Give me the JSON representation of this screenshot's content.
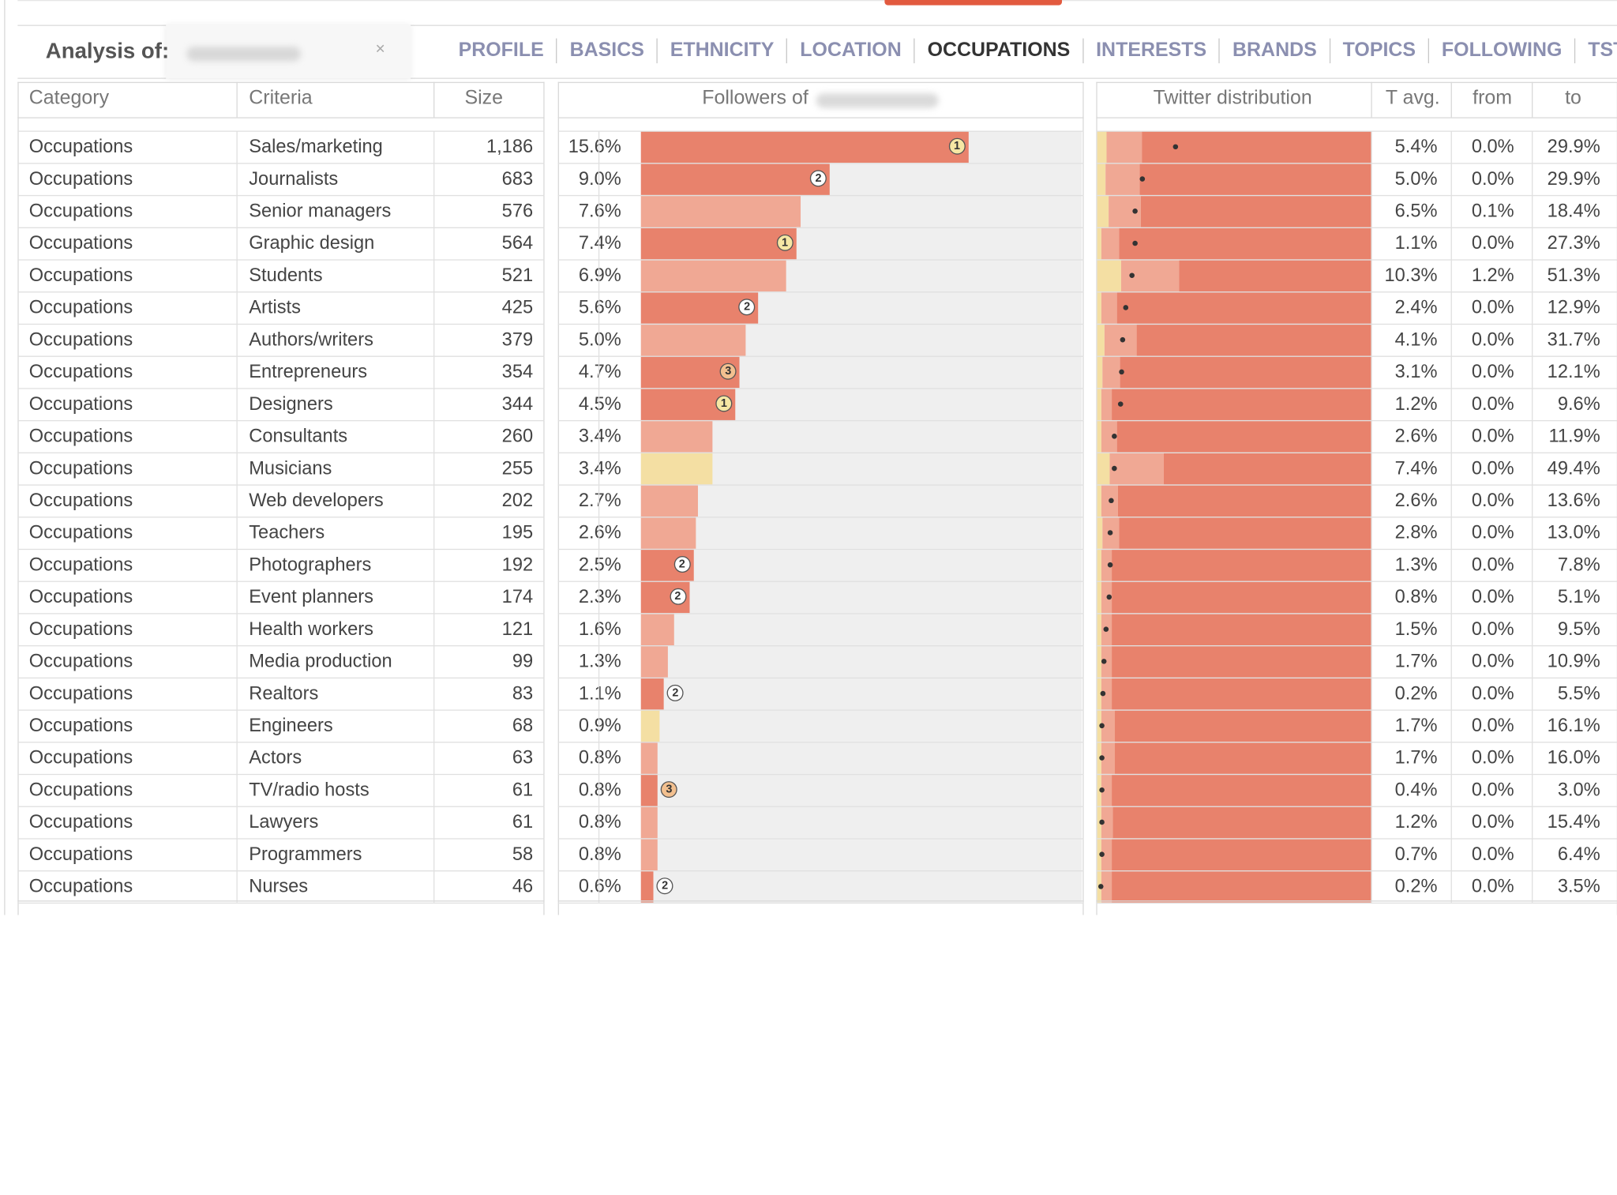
{
  "header": {
    "analysis_label": "Analysis of:",
    "clear_symbol": "×",
    "tabs": [
      "PROFILE",
      "BASICS",
      "ETHNICITY",
      "LOCATION",
      "OCCUPATIONS",
      "INTERESTS",
      "BRANDS",
      "TOPICS",
      "FOLLOWING",
      "TSTATS"
    ],
    "active_tab": "OCCUPATIONS"
  },
  "columns": {
    "category": "Category",
    "criteria": "Criteria",
    "size": "Size",
    "followers": "Followers of",
    "twitter_distribution": "Twitter distribution",
    "t_avg": "T avg.",
    "from": "from",
    "to": "to"
  },
  "colors": {
    "bar_dark": "#e8826c",
    "bar_light": "#f0a894",
    "bar_yellow": "#f4dfa3",
    "track": "#efefef",
    "badge_yellow": "#f6e7a4",
    "badge_orange": "#f3c08f",
    "badge_white": "#ffffff"
  },
  "rows": [
    {
      "category": "Occupations",
      "criteria": "Sales/marketing",
      "size": "1,186",
      "pct": "15.6%",
      "value": 15.6,
      "color": "dark",
      "badge": "1",
      "tavg": "5.4%",
      "from": "0.0%",
      "to": "29.9%",
      "dist": [
        0.0,
        5.4,
        29.9
      ]
    },
    {
      "category": "Occupations",
      "criteria": "Journalists",
      "size": "683",
      "pct": "9.0%",
      "value": 9.0,
      "color": "dark",
      "badge": "2",
      "tavg": "5.0%",
      "from": "0.0%",
      "to": "29.9%",
      "dist": [
        0.0,
        5.0,
        29.9
      ]
    },
    {
      "category": "Occupations",
      "criteria": "Senior managers",
      "size": "576",
      "pct": "7.6%",
      "value": 7.6,
      "color": "light",
      "badge": "",
      "tavg": "6.5%",
      "from": "0.1%",
      "to": "18.4%",
      "dist": [
        0.1,
        6.5,
        18.4
      ]
    },
    {
      "category": "Occupations",
      "criteria": "Graphic design",
      "size": "564",
      "pct": "7.4%",
      "value": 7.4,
      "color": "dark",
      "badge": "1",
      "tavg": "1.1%",
      "from": "0.0%",
      "to": "27.3%",
      "dist": [
        0.0,
        1.1,
        27.3
      ]
    },
    {
      "category": "Occupations",
      "criteria": "Students",
      "size": "521",
      "pct": "6.9%",
      "value": 6.9,
      "color": "light",
      "badge": "",
      "tavg": "10.3%",
      "from": "1.2%",
      "to": "51.3%",
      "dist": [
        1.2,
        10.3,
        51.3
      ]
    },
    {
      "category": "Occupations",
      "criteria": "Artists",
      "size": "425",
      "pct": "5.6%",
      "value": 5.6,
      "color": "dark",
      "badge": "2",
      "tavg": "2.4%",
      "from": "0.0%",
      "to": "12.9%",
      "dist": [
        0.0,
        2.4,
        12.9
      ]
    },
    {
      "category": "Occupations",
      "criteria": "Authors/writers",
      "size": "379",
      "pct": "5.0%",
      "value": 5.0,
      "color": "light",
      "badge": "",
      "tavg": "4.1%",
      "from": "0.0%",
      "to": "31.7%",
      "dist": [
        0.0,
        4.1,
        31.7
      ]
    },
    {
      "category": "Occupations",
      "criteria": "Entrepreneurs",
      "size": "354",
      "pct": "4.7%",
      "value": 4.7,
      "color": "dark",
      "badge": "3",
      "tavg": "3.1%",
      "from": "0.0%",
      "to": "12.1%",
      "dist": [
        0.0,
        3.1,
        12.1
      ]
    },
    {
      "category": "Occupations",
      "criteria": "Designers",
      "size": "344",
      "pct": "4.5%",
      "value": 4.5,
      "color": "dark",
      "badge": "1",
      "tavg": "1.2%",
      "from": "0.0%",
      "to": "9.6%",
      "dist": [
        0.0,
        1.2,
        9.6
      ]
    },
    {
      "category": "Occupations",
      "criteria": "Consultants",
      "size": "260",
      "pct": "3.4%",
      "value": 3.4,
      "color": "light",
      "badge": "",
      "tavg": "2.6%",
      "from": "0.0%",
      "to": "11.9%",
      "dist": [
        0.0,
        2.6,
        11.9
      ]
    },
    {
      "category": "Occupations",
      "criteria": "Musicians",
      "size": "255",
      "pct": "3.4%",
      "value": 3.4,
      "color": "yellow",
      "badge": "",
      "tavg": "7.4%",
      "from": "0.0%",
      "to": "49.4%",
      "dist": [
        0.0,
        7.4,
        49.4
      ]
    },
    {
      "category": "Occupations",
      "criteria": "Web developers",
      "size": "202",
      "pct": "2.7%",
      "value": 2.7,
      "color": "light",
      "badge": "",
      "tavg": "2.6%",
      "from": "0.0%",
      "to": "13.6%",
      "dist": [
        0.0,
        2.6,
        13.6
      ]
    },
    {
      "category": "Occupations",
      "criteria": "Teachers",
      "size": "195",
      "pct": "2.6%",
      "value": 2.6,
      "color": "light",
      "badge": "",
      "tavg": "2.8%",
      "from": "0.0%",
      "to": "13.0%",
      "dist": [
        0.0,
        2.8,
        13.0
      ]
    },
    {
      "category": "Occupations",
      "criteria": "Photographers",
      "size": "192",
      "pct": "2.5%",
      "value": 2.5,
      "color": "dark",
      "badge": "2",
      "tavg": "1.3%",
      "from": "0.0%",
      "to": "7.8%",
      "dist": [
        0.0,
        1.3,
        7.8
      ]
    },
    {
      "category": "Occupations",
      "criteria": "Event planners",
      "size": "174",
      "pct": "2.3%",
      "value": 2.3,
      "color": "dark",
      "badge": "2",
      "tavg": "0.8%",
      "from": "0.0%",
      "to": "5.1%",
      "dist": [
        0.0,
        0.8,
        5.1
      ]
    },
    {
      "category": "Occupations",
      "criteria": "Health workers",
      "size": "121",
      "pct": "1.6%",
      "value": 1.6,
      "color": "light",
      "badge": "",
      "tavg": "1.5%",
      "from": "0.0%",
      "to": "9.5%",
      "dist": [
        0.0,
        1.5,
        9.5
      ]
    },
    {
      "category": "Occupations",
      "criteria": "Media production",
      "size": "99",
      "pct": "1.3%",
      "value": 1.3,
      "color": "light",
      "badge": "",
      "tavg": "1.7%",
      "from": "0.0%",
      "to": "10.9%",
      "dist": [
        0.0,
        1.7,
        10.9
      ]
    },
    {
      "category": "Occupations",
      "criteria": "Realtors",
      "size": "83",
      "pct": "1.1%",
      "value": 1.1,
      "color": "dark",
      "badge": "2",
      "tavg": "0.2%",
      "from": "0.0%",
      "to": "5.5%",
      "dist": [
        0.0,
        0.2,
        5.5
      ]
    },
    {
      "category": "Occupations",
      "criteria": "Engineers",
      "size": "68",
      "pct": "0.9%",
      "value": 0.9,
      "color": "yellow",
      "badge": "",
      "tavg": "1.7%",
      "from": "0.0%",
      "to": "16.1%",
      "dist": [
        0.0,
        1.7,
        16.1
      ]
    },
    {
      "category": "Occupations",
      "criteria": "Actors",
      "size": "63",
      "pct": "0.8%",
      "value": 0.8,
      "color": "light",
      "badge": "",
      "tavg": "1.7%",
      "from": "0.0%",
      "to": "16.0%",
      "dist": [
        0.0,
        1.7,
        16.0
      ]
    },
    {
      "category": "Occupations",
      "criteria": "TV/radio hosts",
      "size": "61",
      "pct": "0.8%",
      "value": 0.8,
      "color": "dark",
      "badge": "3",
      "tavg": "0.4%",
      "from": "0.0%",
      "to": "3.0%",
      "dist": [
        0.0,
        0.4,
        3.0
      ]
    },
    {
      "category": "Occupations",
      "criteria": "Lawyers",
      "size": "61",
      "pct": "0.8%",
      "value": 0.8,
      "color": "light",
      "badge": "",
      "tavg": "1.2%",
      "from": "0.0%",
      "to": "15.4%",
      "dist": [
        0.0,
        1.2,
        15.4
      ]
    },
    {
      "category": "Occupations",
      "criteria": "Programmers",
      "size": "58",
      "pct": "0.8%",
      "value": 0.8,
      "color": "light",
      "badge": "",
      "tavg": "0.7%",
      "from": "0.0%",
      "to": "6.4%",
      "dist": [
        0.0,
        0.7,
        6.4
      ]
    },
    {
      "category": "Occupations",
      "criteria": "Nurses",
      "size": "46",
      "pct": "0.6%",
      "value": 0.6,
      "color": "dark",
      "badge": "2",
      "tavg": "0.2%",
      "from": "0.0%",
      "to": "3.5%",
      "dist": [
        0.0,
        0.2,
        3.5
      ]
    }
  ]
}
